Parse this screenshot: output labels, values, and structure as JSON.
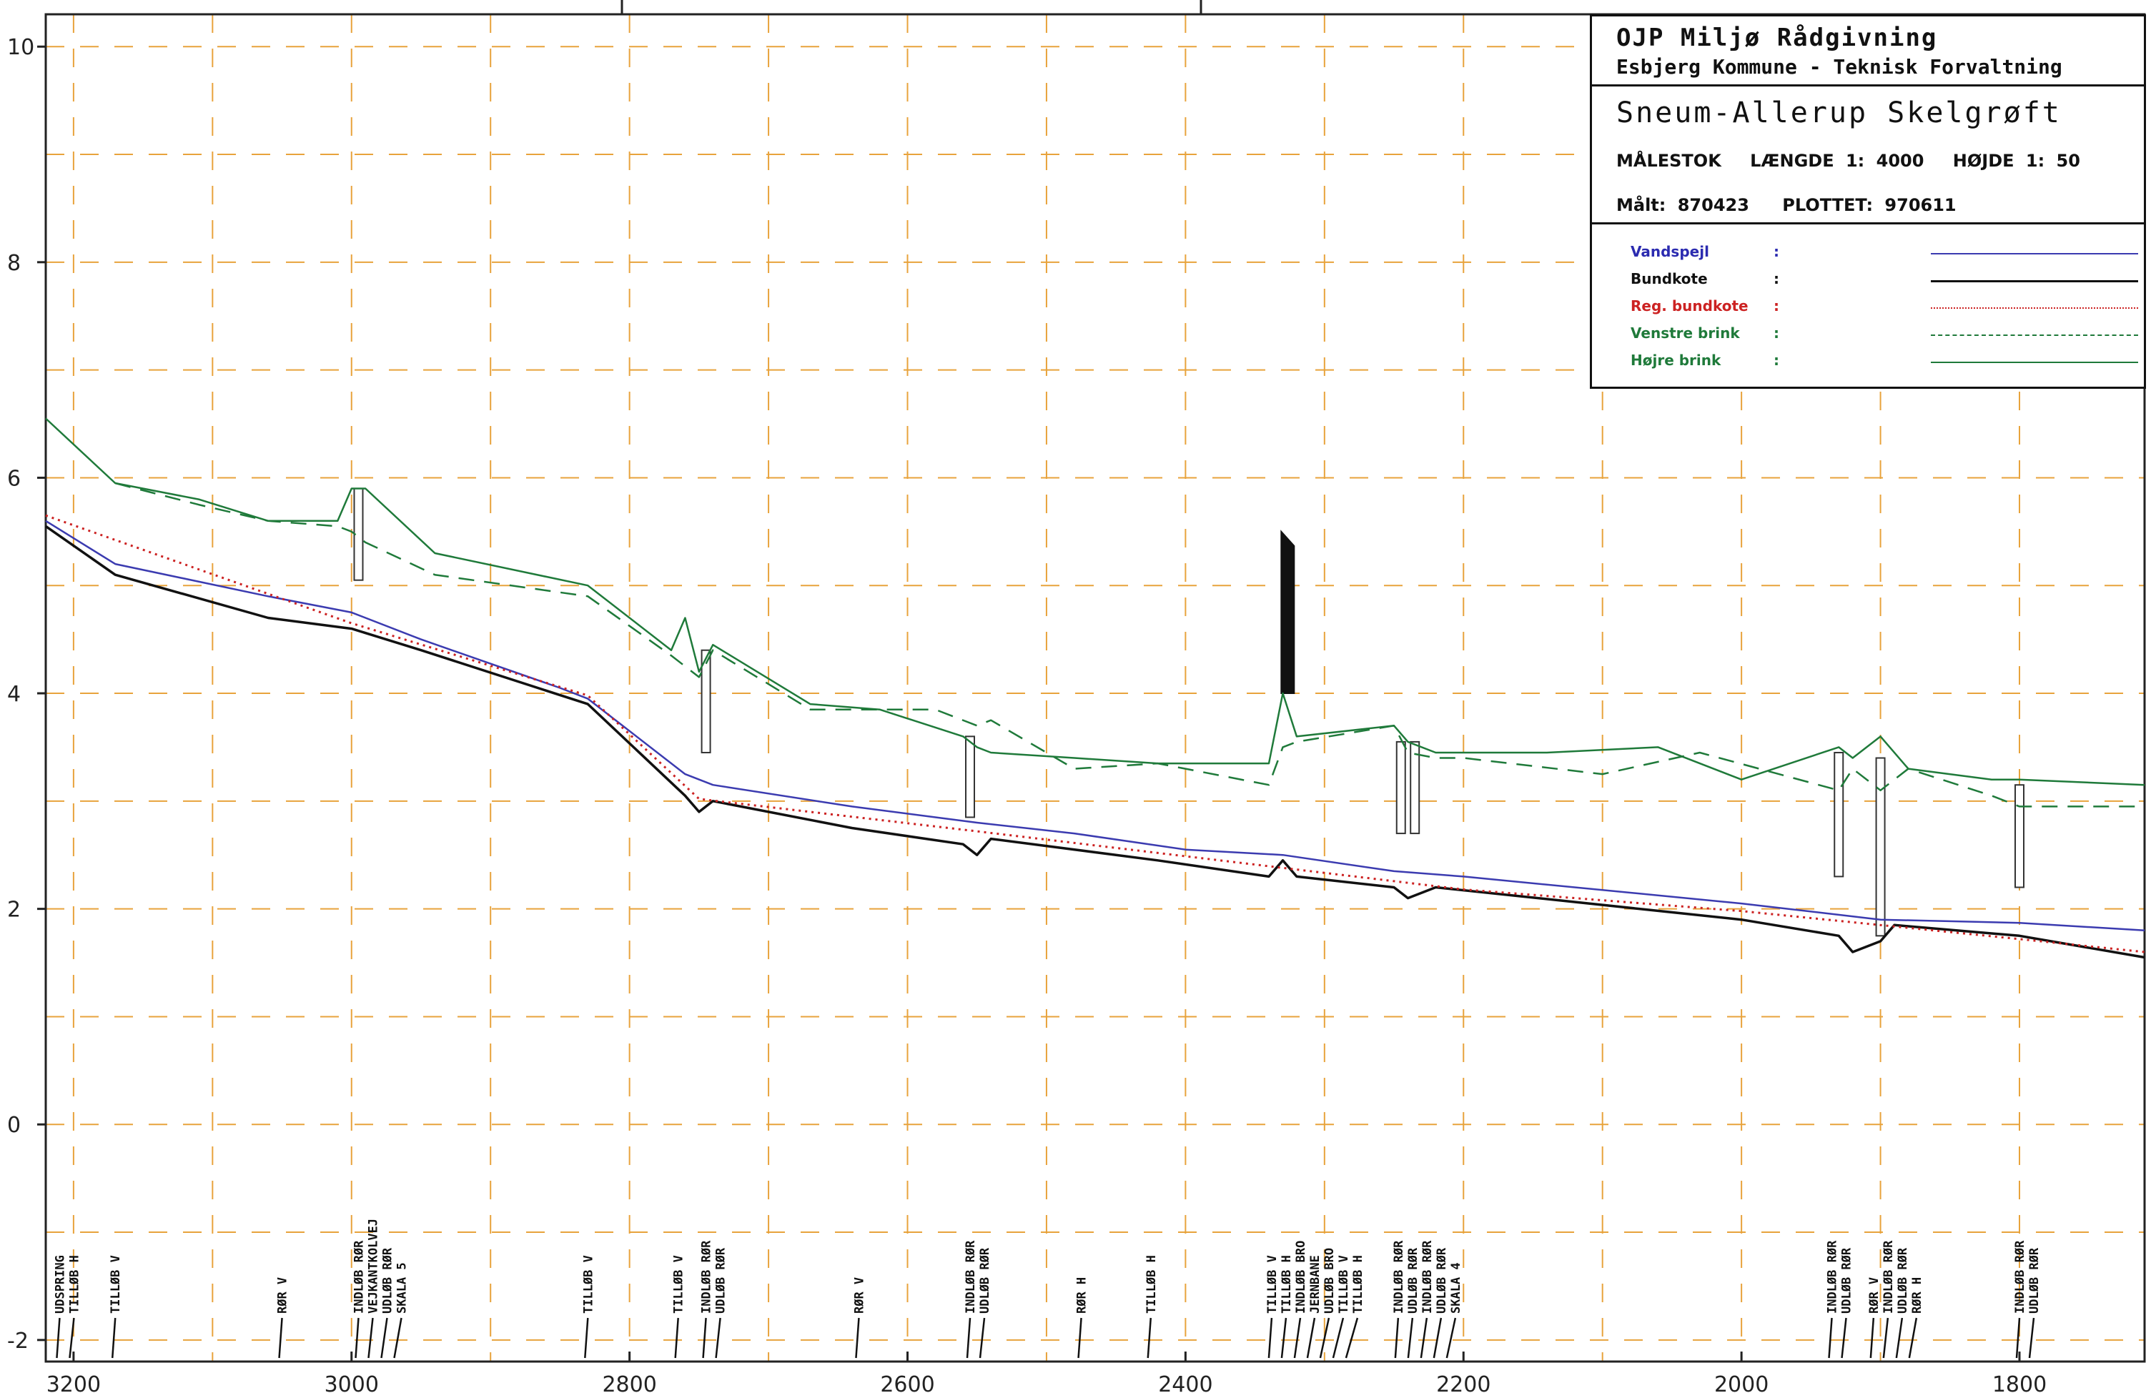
{
  "title_block": {
    "org_line1": "OJP Miljø Rådgivning",
    "org_line2": "Esbjerg Kommune - Teknisk Forvaltning",
    "project": "Sneum-Allerup Skelgrøft",
    "scale_label": "MÅLESTOK",
    "scale_length": "LÆNGDE 1: 4000",
    "scale_height": "HØJDE 1: 50",
    "measured": "Målt: 870423",
    "plotted": "PLOTTET: 970611"
  },
  "legend": [
    {
      "name": "Vandspejl",
      "colon": ":",
      "color": "#3b3bb0",
      "style": "solid",
      "text_color": "#2b2bb0"
    },
    {
      "name": "Bundkote",
      "colon": ":",
      "color": "#111111",
      "style": "solid-thick",
      "text_color": "#111111"
    },
    {
      "name": "Reg. bundkote",
      "colon": ":",
      "color": "#cc2222",
      "style": "dotted",
      "text_color": "#cc2222"
    },
    {
      "name": "Venstre brink",
      "colon": ":",
      "color": "#1f7a3a",
      "style": "dashed",
      "text_color": "#1f7a3a"
    },
    {
      "name": "Højre brink",
      "colon": ":",
      "color": "#1f7a3a",
      "style": "solid",
      "text_color": "#1f7a3a"
    }
  ],
  "chart_data": {
    "type": "line",
    "xlim": [
      3220,
      1710
    ],
    "ylim": [
      -2.2,
      10.3
    ],
    "x_ticks": [
      3200,
      3000,
      2800,
      2600,
      2400,
      2200,
      2000,
      1800
    ],
    "x_tick_labels": [
      "3200",
      "3000",
      "2800",
      "2600",
      "2400",
      "2200",
      "2000",
      "1800"
    ],
    "y_ticks": [
      -2,
      0,
      2,
      4,
      6,
      8,
      10
    ],
    "y_tick_labels": [
      "-2",
      "0",
      "2",
      "4",
      "6",
      "8",
      "10"
    ],
    "grid": true,
    "series": [
      {
        "name": "Vandspejl",
        "color": "#3b3bb0",
        "x": [
          3220,
          3170,
          3060,
          3000,
          2950,
          2850,
          2830,
          2760,
          2740,
          2640,
          2550,
          2480,
          2400,
          2330,
          2250,
          2200,
          2000,
          1900,
          1800,
          1710
        ],
        "y": [
          5.6,
          5.2,
          4.9,
          4.75,
          4.5,
          4.05,
          3.95,
          3.25,
          3.15,
          2.95,
          2.8,
          2.7,
          2.55,
          2.5,
          2.35,
          2.3,
          2.05,
          1.9,
          1.87,
          1.8
        ]
      },
      {
        "name": "Bundkote",
        "color": "#111111",
        "x": [
          3220,
          3170,
          3060,
          3000,
          2950,
          2830,
          2760,
          2750,
          2740,
          2640,
          2560,
          2550,
          2540,
          2420,
          2340,
          2330,
          2320,
          2250,
          2240,
          2220,
          2000,
          1930,
          1920,
          1900,
          1890,
          1800,
          1710
        ],
        "y": [
          5.55,
          5.1,
          4.7,
          4.6,
          4.4,
          3.9,
          3.05,
          2.9,
          3.0,
          2.75,
          2.6,
          2.5,
          2.65,
          2.45,
          2.3,
          2.45,
          2.3,
          2.2,
          2.1,
          2.2,
          1.9,
          1.75,
          1.6,
          1.7,
          1.85,
          1.75,
          1.55
        ]
      },
      {
        "name": "Reg. bundkote",
        "color": "#cc2222",
        "x": [
          3220,
          3000,
          2830,
          2750,
          2550,
          2330,
          2200,
          2000,
          1800,
          1710
        ],
        "y": [
          5.65,
          4.65,
          3.98,
          3.02,
          2.72,
          2.38,
          2.18,
          1.98,
          1.72,
          1.6
        ]
      },
      {
        "name": "Venstre brink",
        "color": "#1f7a3a",
        "x": [
          3170,
          3110,
          3060,
          3010,
          3000,
          2990,
          2940,
          2830,
          2770,
          2750,
          2740,
          2670,
          2580,
          2550,
          2540,
          2480,
          2420,
          2340,
          2330,
          2320,
          2250,
          2240,
          2220,
          2200,
          2100,
          2030,
          1930,
          1920,
          1900,
          1880,
          1820,
          1800,
          1710
        ],
        "y": [
          5.95,
          5.75,
          5.6,
          5.55,
          5.5,
          5.4,
          5.1,
          4.9,
          4.35,
          4.15,
          4.4,
          3.85,
          3.85,
          3.7,
          3.75,
          3.3,
          3.35,
          3.15,
          3.5,
          3.55,
          3.7,
          3.45,
          3.4,
          3.4,
          3.25,
          3.45,
          3.1,
          3.3,
          3.1,
          3.3,
          3.05,
          2.95,
          2.95
        ]
      },
      {
        "name": "Højre brink",
        "color": "#1f7a3a",
        "x": [
          3220,
          3170,
          3110,
          3060,
          3010,
          3000,
          2990,
          2940,
          2830,
          2770,
          2760,
          2750,
          2740,
          2670,
          2620,
          2560,
          2550,
          2540,
          2480,
          2420,
          2340,
          2330,
          2320,
          2250,
          2240,
          2220,
          2140,
          2060,
          2000,
          1930,
          1920,
          1900,
          1880,
          1820,
          1800,
          1710
        ],
        "y": [
          6.55,
          5.95,
          5.8,
          5.6,
          5.6,
          5.9,
          5.9,
          5.3,
          5.0,
          4.4,
          4.7,
          4.2,
          4.45,
          3.9,
          3.85,
          3.6,
          3.5,
          3.45,
          3.4,
          3.35,
          3.35,
          4.0,
          3.6,
          3.7,
          3.55,
          3.45,
          3.45,
          3.5,
          3.2,
          3.5,
          3.4,
          3.6,
          3.3,
          3.2,
          3.2,
          3.15
        ]
      }
    ],
    "structures": [
      {
        "x": 2995,
        "y_top": 5.9,
        "y_bottom": 5.05
      },
      {
        "x": 2745,
        "y_top": 4.4,
        "y_bottom": 3.45
      },
      {
        "x": 2555,
        "y_top": 3.6,
        "y_bottom": 2.85
      },
      {
        "x": 2245,
        "y_top": 3.55,
        "y_bottom": 2.7
      },
      {
        "x": 2235,
        "y_top": 3.55,
        "y_bottom": 2.7
      },
      {
        "x": 1930,
        "y_top": 3.45,
        "y_bottom": 2.3
      },
      {
        "x": 1900,
        "y_top": 3.4,
        "y_bottom": 1.75
      },
      {
        "x": 1800,
        "y_top": 3.15,
        "y_bottom": 2.2
      }
    ],
    "bridge": {
      "x": 2327,
      "y_top": 5.5,
      "y_bottom": 4.0
    },
    "annotations": [
      {
        "x": 3210,
        "lines": [
          "UDSPRING",
          "TILLØB H"
        ]
      },
      {
        "x": 3170,
        "lines": [
          "TILLØB V"
        ]
      },
      {
        "x": 3050,
        "lines": [
          "RØR V"
        ]
      },
      {
        "x": 2995,
        "lines": [
          "INDLØB RØR",
          "VEJKANTKOLVEJ",
          "UDLØB RØR",
          "SKALA 5"
        ]
      },
      {
        "x": 2830,
        "lines": [
          "TILLØB V"
        ]
      },
      {
        "x": 2765,
        "lines": [
          "TILLØB V"
        ]
      },
      {
        "x": 2745,
        "lines": [
          "INDLØB RØR",
          "UDLØB RØR"
        ]
      },
      {
        "x": 2635,
        "lines": [
          "RØR V"
        ]
      },
      {
        "x": 2555,
        "lines": [
          "INDLØB RØR",
          "UDLØB RØR"
        ]
      },
      {
        "x": 2475,
        "lines": [
          "RØR H"
        ]
      },
      {
        "x": 2425,
        "lines": [
          "TILLØB H"
        ]
      },
      {
        "x": 2338,
        "lines": [
          "TILLØB V",
          "TILLØB H",
          "INDLØB BRO",
          "JERNBANE",
          "UDLØB BRO",
          "TILLØB V",
          "TILLØB H"
        ]
      },
      {
        "x": 2247,
        "lines": [
          "INDLØB RØR",
          "UDLØB RØR",
          "INDLØB RØR",
          "UDLØB RØR",
          "SKALA 4"
        ]
      },
      {
        "x": 1935,
        "lines": [
          "INDLØB RØR",
          "UDLØB RØR"
        ]
      },
      {
        "x": 1905,
        "lines": [
          "RØR V",
          "INDLØB RØR",
          "UDLØB RØR",
          "RØR H"
        ]
      },
      {
        "x": 1800,
        "lines": [
          "INDLØB RØR",
          "UDLØB RØR"
        ]
      }
    ]
  }
}
